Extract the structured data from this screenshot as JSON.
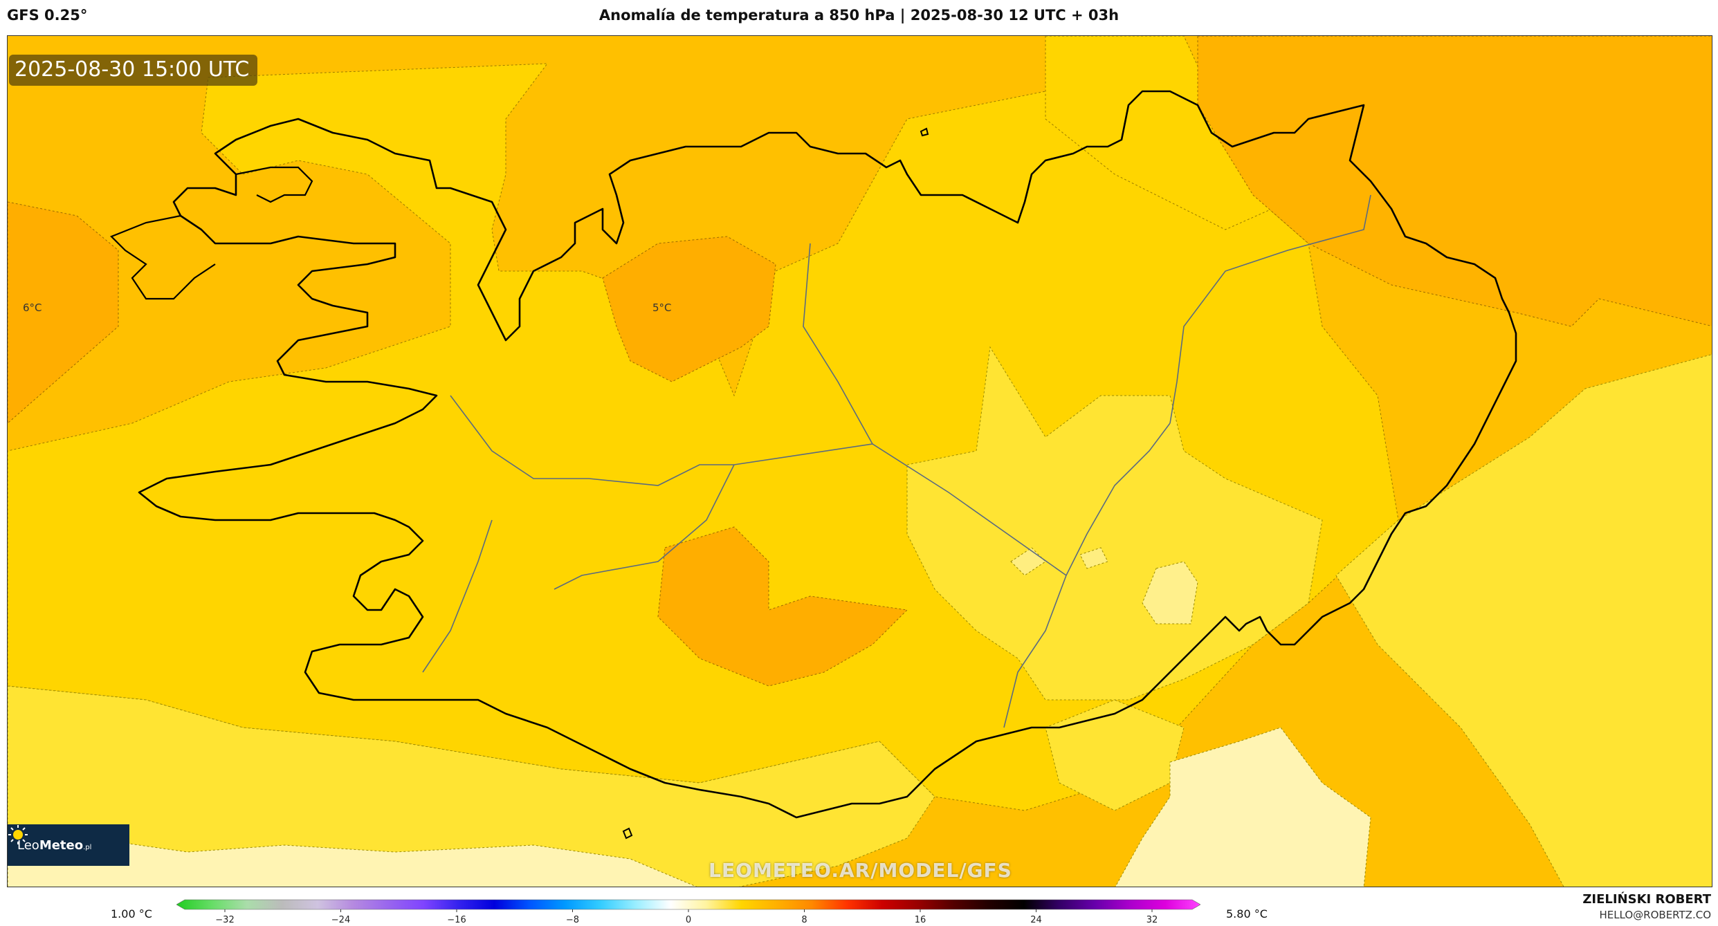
{
  "header": {
    "model": "GFS 0.25°",
    "title": "Anomalía de temperatura a 850 hPa | 2025-08-30 12 UTC + 03h"
  },
  "map": {
    "valid_time": "2025-08-30 15:00 UTC",
    "labels": [
      "6°C",
      "5°C"
    ],
    "watermark": "LEOMETEO.AR/MODEL/GFS",
    "colors": {
      "band_6": "#FFB300",
      "band_5": "#FFC000",
      "band_4": "#FFD500",
      "band_3": "#FFE433",
      "band_2": "#FFF08C",
      "band_1": "#FFF4B3",
      "coastline": "#000000",
      "borders": "#5a6a80"
    }
  },
  "logo": {
    "brand_light": "Leo",
    "brand_bold": "Meteo",
    "suffix": ".pl",
    "icon": "sun-icon"
  },
  "legend": {
    "min_label": "1.00 °C",
    "max_label": "5.80 °C",
    "ticks": [
      "−32",
      "−24",
      "−16",
      "−8",
      "0",
      "8",
      "16",
      "24",
      "32"
    ],
    "gradient_stops": [
      "#22cc22",
      "#66dd66",
      "#aaddaa",
      "#bbbbbb",
      "#cfc3e0",
      "#b58ae0",
      "#9966ee",
      "#7f44ff",
      "#3322ee",
      "#0000dd",
      "#0055ff",
      "#0099ff",
      "#33ccff",
      "#99eeff",
      "#ffffff",
      "#fff4a0",
      "#ffd500",
      "#ffb000",
      "#ff8800",
      "#ff3300",
      "#cc0000",
      "#990000",
      "#550000",
      "#220000",
      "#000000",
      "#330066",
      "#6600aa",
      "#aa00cc",
      "#dd00dd",
      "#ff44ff"
    ]
  },
  "credit": {
    "name": "ZIELIŃSKI ROBERT",
    "email": "HELLO@ROBERTZ.CO"
  }
}
